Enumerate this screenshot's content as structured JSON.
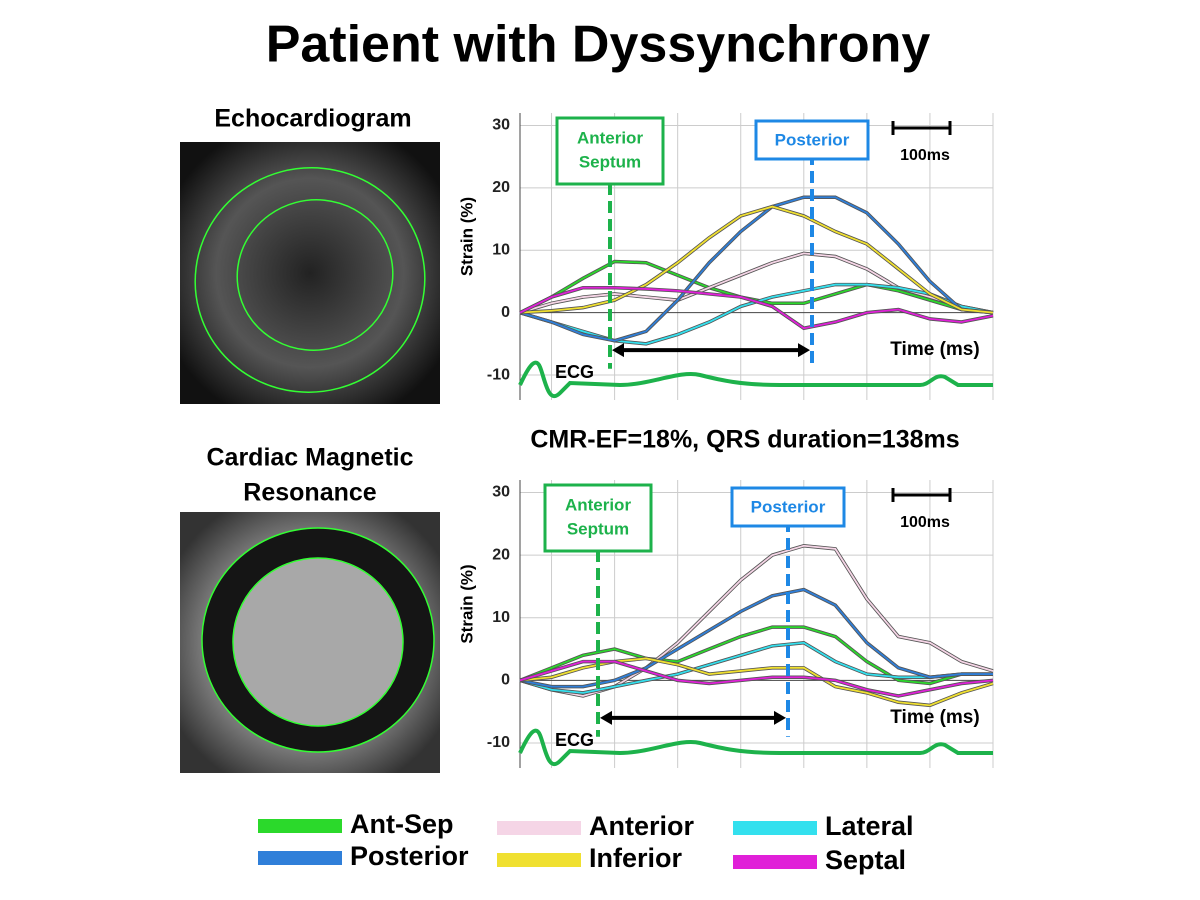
{
  "title": "Patient with Dyssynchrony",
  "image_labels": [
    "Echocardiogram",
    "Cardiac Magnetic",
    "Resonance"
  ],
  "chart_data": [
    {
      "type": "line",
      "y_label": "Strain (%)",
      "x_label": "Time (ms)",
      "ecg_label": "ECG",
      "scale_label": "100ms",
      "annotations": [
        "Anterior",
        "Septum",
        "Posterior"
      ],
      "categories": [
        null,
        null,
        null,
        null,
        null,
        null,
        null,
        null,
        null,
        null,
        null,
        null,
        null,
        null,
        null,
        null
      ],
      "ylim": [
        -14,
        32
      ],
      "yticks": [
        -10,
        0,
        10,
        20,
        30
      ],
      "grid": true,
      "series": [
        {
          "name": "Ant-Sep",
          "color": "#2bd92b",
          "values": [
            0,
            2.5,
            5.5,
            8.2,
            8,
            6,
            4,
            2.5,
            1.5,
            1.5,
            3,
            4.5,
            3.5,
            2,
            0.5,
            0
          ]
        },
        {
          "name": "Anterior",
          "color": "#f5d5e6",
          "values": [
            0,
            1.5,
            2.5,
            3,
            2.5,
            2,
            4,
            6,
            8,
            9.5,
            9,
            7,
            4,
            2.5,
            1,
            0
          ]
        },
        {
          "name": "Lateral",
          "color": "#33e0ee",
          "values": [
            0,
            -1.5,
            -3,
            -4.5,
            -5,
            -3.5,
            -1.5,
            1,
            2.5,
            3.5,
            4.5,
            4.5,
            4,
            3,
            1,
            0
          ]
        },
        {
          "name": "Posterior",
          "color": "#2f7fd9",
          "values": [
            0,
            -1.5,
            -3.5,
            -4.5,
            -3,
            2,
            8,
            13,
            17,
            18.5,
            18.5,
            16,
            11,
            5,
            0.5,
            0
          ]
        },
        {
          "name": "Inferior",
          "color": "#f0e030",
          "values": [
            0,
            0.3,
            0.8,
            2,
            4.5,
            8,
            12,
            15.5,
            17,
            15.5,
            13,
            11,
            7,
            3,
            0.5,
            0
          ]
        },
        {
          "name": "Septal",
          "color": "#e020d8",
          "values": [
            0,
            2.5,
            4,
            4,
            3.8,
            3.5,
            3,
            2.5,
            1,
            -2.5,
            -1.5,
            0,
            0.5,
            -1,
            -1.5,
            -0.5
          ]
        }
      ]
    },
    {
      "type": "line",
      "title": "CMR-EF=18%, QRS duration=138ms",
      "y_label": "Strain (%)",
      "x_label": "Time (ms)",
      "ecg_label": "ECG",
      "scale_label": "100ms",
      "annotations": [
        "Anterior",
        "Septum",
        "Posterior"
      ],
      "categories": [
        null,
        null,
        null,
        null,
        null,
        null,
        null,
        null,
        null,
        null,
        null,
        null,
        null,
        null,
        null,
        null
      ],
      "ylim": [
        -14,
        32
      ],
      "yticks": [
        -10,
        0,
        10,
        20,
        30
      ],
      "grid": true,
      "series": [
        {
          "name": "Ant-Sep",
          "color": "#2bd92b",
          "values": [
            0,
            2,
            4,
            5,
            3.5,
            3,
            5,
            7,
            8.5,
            8.5,
            7,
            3,
            0,
            -0.5,
            1,
            1
          ]
        },
        {
          "name": "Anterior",
          "color": "#f5d5e6",
          "values": [
            0,
            -1.5,
            -2.5,
            -1,
            2,
            6,
            11,
            16,
            20,
            21.5,
            21,
            13,
            7,
            6,
            3,
            1.5
          ]
        },
        {
          "name": "Lateral",
          "color": "#33e0ee",
          "values": [
            0,
            -1.5,
            -2,
            -1,
            0,
            1,
            2.5,
            4,
            5.5,
            6,
            3,
            1,
            0.5,
            0.5,
            1,
            1
          ]
        },
        {
          "name": "Posterior",
          "color": "#2f7fd9",
          "values": [
            0,
            -1,
            -1,
            0,
            2,
            5,
            8,
            11,
            13.5,
            14.5,
            12,
            6,
            2,
            0.5,
            1,
            1
          ]
        },
        {
          "name": "Inferior",
          "color": "#f0e030",
          "values": [
            0,
            0.5,
            2,
            3,
            3.5,
            2.5,
            1,
            1.5,
            2,
            2,
            -1,
            -2,
            -3.5,
            -4,
            -2,
            -0.5
          ]
        },
        {
          "name": "Septal",
          "color": "#e020d8",
          "values": [
            0,
            1.5,
            3,
            3,
            1.5,
            0,
            -0.5,
            0,
            0.5,
            0.5,
            0,
            -1.5,
            -2.5,
            -1.5,
            -0.5,
            0
          ]
        }
      ]
    }
  ]
}
